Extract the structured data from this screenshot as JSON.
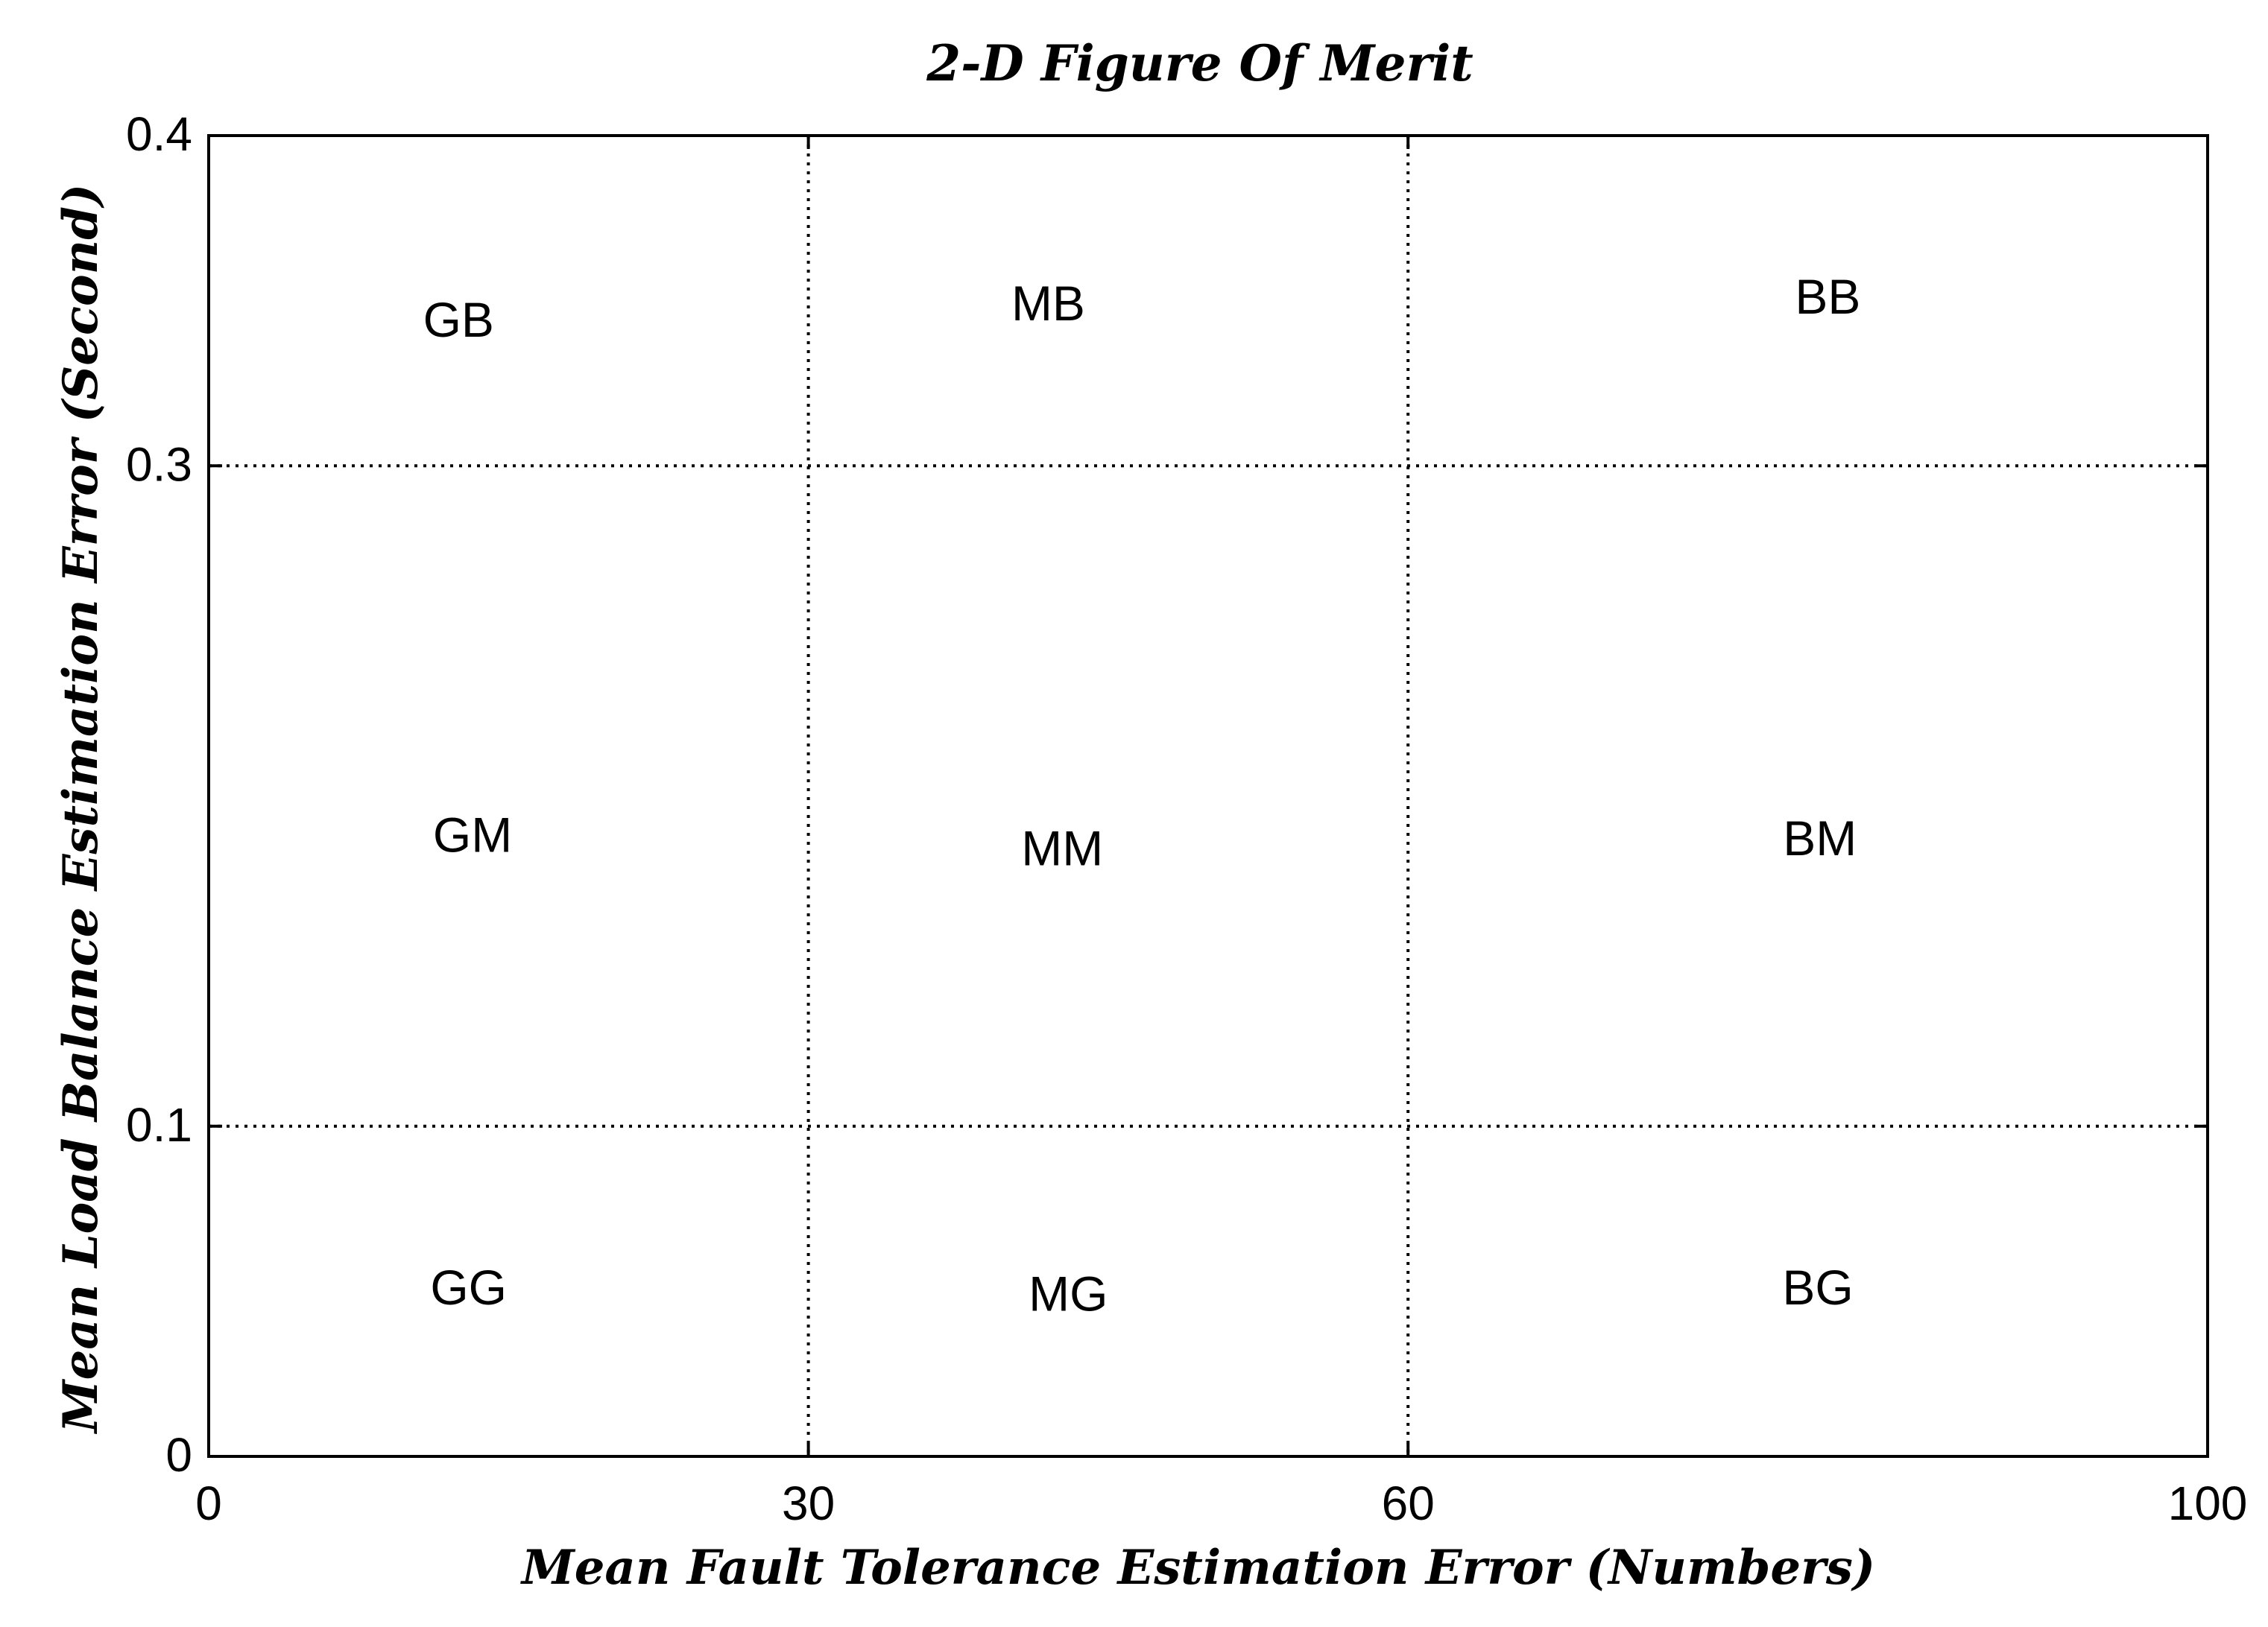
{
  "chart_data": {
    "type": "scatter",
    "title": "2-D Figure Of Merit",
    "xlabel": "Mean Fault Tolerance Estimation Error (Numbers)",
    "ylabel": "Mean Load Balance Estimation Error (Second)",
    "xlim": [
      0,
      100
    ],
    "ylim": [
      0,
      0.4
    ],
    "xticks": [
      0,
      30,
      60,
      100
    ],
    "yticks": [
      0,
      0.1,
      0.3,
      0.4
    ],
    "xtick_labels": [
      "0",
      "30",
      "60",
      "100"
    ],
    "ytick_labels": [
      "0",
      "0.1",
      "0.3",
      "0.4"
    ],
    "grid": {
      "enabled": true,
      "style": "dotted",
      "x_lines": [
        30,
        60
      ],
      "y_lines": [
        0.1,
        0.3
      ]
    },
    "annotations": [
      {
        "text": "GB",
        "x": 12.5,
        "y": 0.343
      },
      {
        "text": "MB",
        "x": 42.0,
        "y": 0.348
      },
      {
        "text": "BB",
        "x": 81.0,
        "y": 0.35
      },
      {
        "text": "GM",
        "x": 13.2,
        "y": 0.187
      },
      {
        "text": "MM",
        "x": 42.7,
        "y": 0.183
      },
      {
        "text": "BM",
        "x": 80.6,
        "y": 0.186
      },
      {
        "text": "GG",
        "x": 13.0,
        "y": 0.05
      },
      {
        "text": "MG",
        "x": 43.0,
        "y": 0.048
      },
      {
        "text": "BG",
        "x": 80.5,
        "y": 0.05
      }
    ],
    "colors": {
      "axis": "#000000",
      "grid": "#000000",
      "text": "#000000",
      "background": "#ffffff"
    }
  }
}
